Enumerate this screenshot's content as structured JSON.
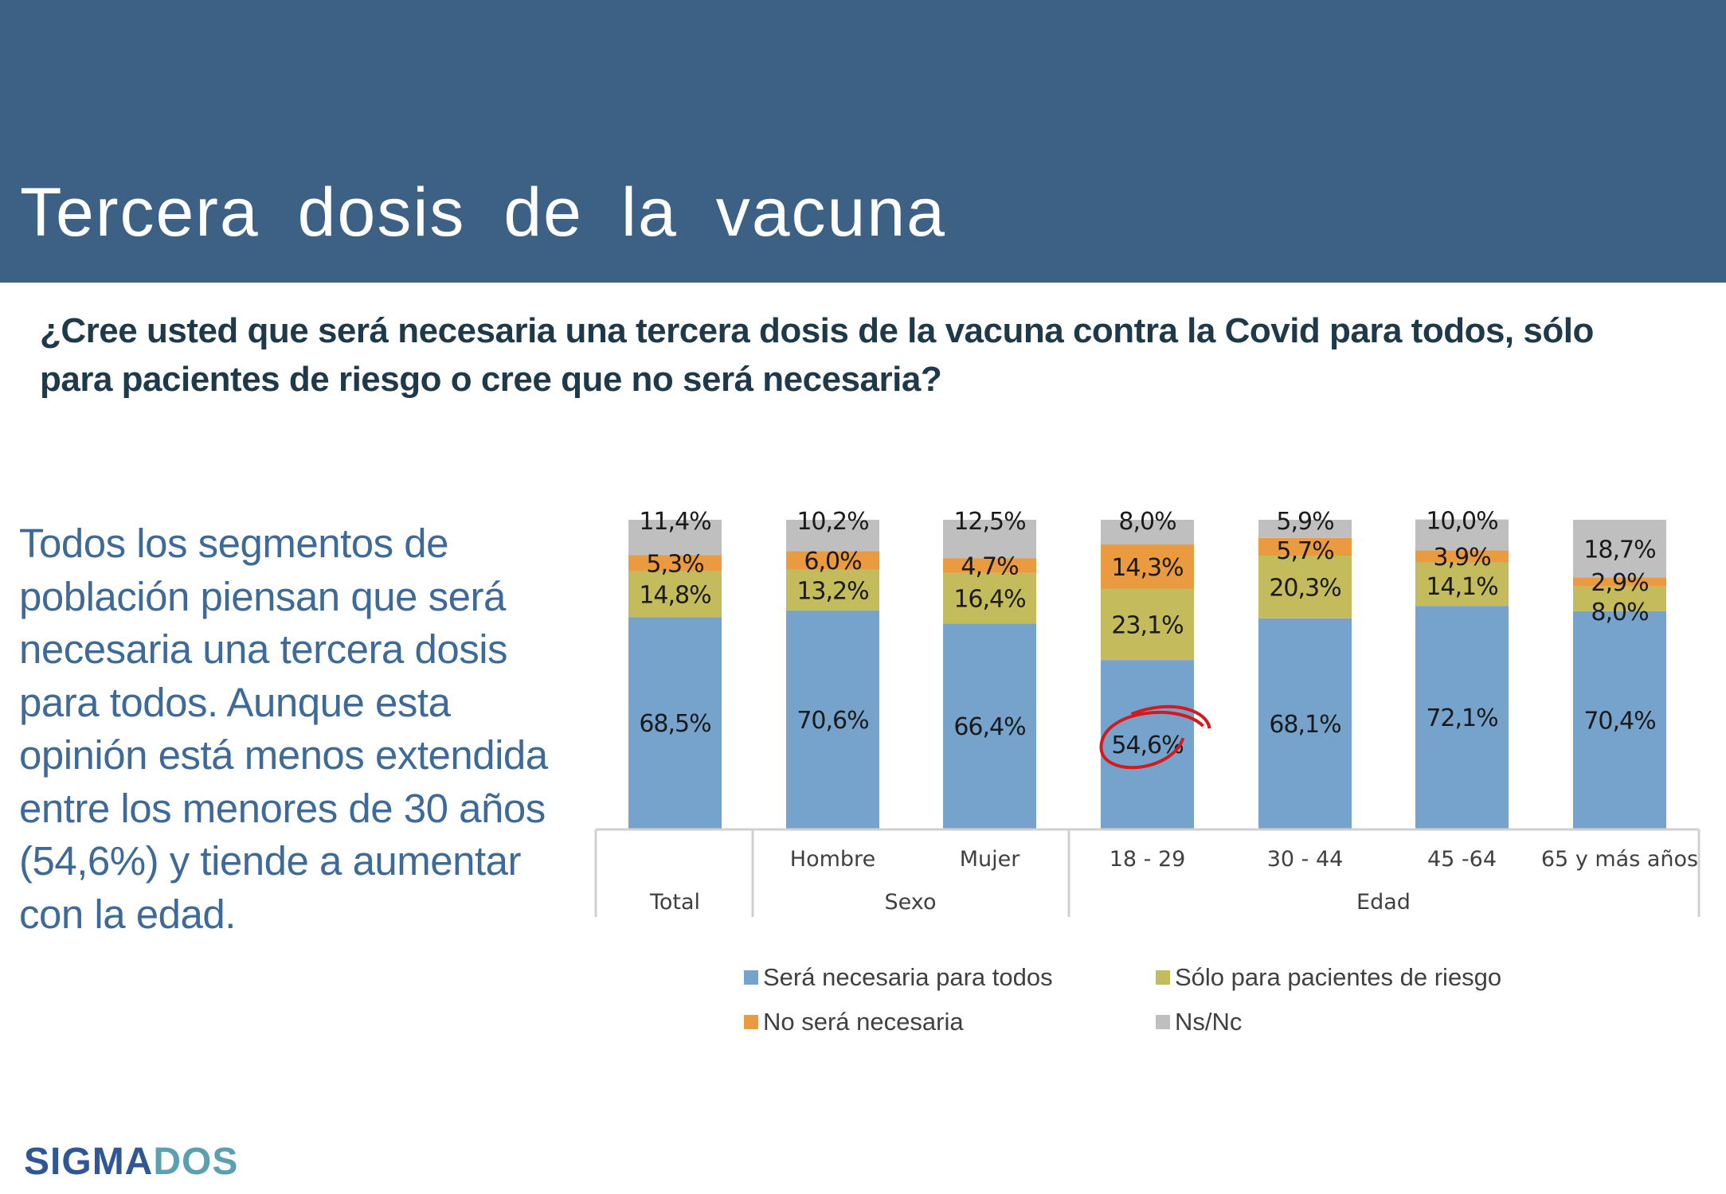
{
  "header": {
    "title": "Tercera  dosis  de  la  vacuna"
  },
  "question": "¿Cree usted que será necesaria una tercera dosis de la vacuna contra la Covid para todos, sólo para pacientes de riesgo o cree que no será necesaria?",
  "insight": "Todos los segmentos de población piensan que será necesaria una tercera dosis para todos. Aunque esta opinión está menos extendida entre los menores de 30 años (54,6%) y tiende a aumentar con la edad.",
  "logo": {
    "part1": "SIGMA",
    "part2": "DOS"
  },
  "chart_data": {
    "type": "bar",
    "stacked": true,
    "categories": [
      "",
      "Hombre",
      "Mujer",
      "18 - 29",
      "30 - 44",
      "45 -64",
      "65 y más años"
    ],
    "groups": [
      {
        "label": "Total",
        "categories": [
          0
        ]
      },
      {
        "label": "Sexo",
        "categories": [
          1,
          2
        ]
      },
      {
        "label": "Edad",
        "categories": [
          3,
          4,
          5,
          6
        ]
      }
    ],
    "series": [
      {
        "name": "Será necesaria para todos",
        "color": "#75a3cb",
        "values": [
          68.5,
          70.6,
          66.4,
          54.6,
          68.1,
          72.1,
          70.4
        ],
        "labels": [
          "68,5%",
          "70,6%",
          "66,4%",
          "54,6%",
          "68,1%",
          "72,1%",
          "70,4%"
        ]
      },
      {
        "name": "Sólo para pacientes de riesgo",
        "color": "#c3bb5c",
        "values": [
          14.8,
          13.2,
          16.4,
          23.1,
          20.3,
          14.1,
          8.0
        ],
        "labels": [
          "14,8%",
          "13,2%",
          "16,4%",
          "23,1%",
          "20,3%",
          "14,1%",
          "8,0%"
        ]
      },
      {
        "name": "No será necesaria",
        "color": "#ea9a3f",
        "values": [
          5.3,
          6.0,
          4.7,
          14.3,
          5.7,
          3.9,
          2.9
        ],
        "labels": [
          "5,3%",
          "6,0%",
          "4,7%",
          "14,3%",
          "5,7%",
          "3,9%",
          "2,9%"
        ]
      },
      {
        "name": "Ns/Nc",
        "color": "#bfbfbf",
        "values": [
          11.4,
          10.2,
          12.5,
          8.0,
          5.9,
          10.0,
          18.7
        ],
        "labels": [
          "11,4%",
          "10,2%",
          "12,5%",
          "8,0%",
          "5,9%",
          "10,0%",
          "18,7%"
        ]
      }
    ],
    "highlight": {
      "series": 0,
      "category": 3,
      "color": "#d7191c"
    },
    "ylim": [
      0,
      100
    ],
    "legend_position": "bottom",
    "title": "",
    "xlabel": "",
    "ylabel": ""
  }
}
